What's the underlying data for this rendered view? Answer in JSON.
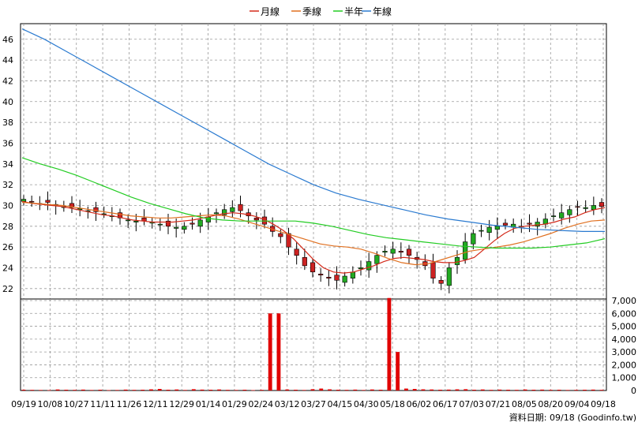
{
  "legend": [
    {
      "label": "月線",
      "color": "#d42a1a"
    },
    {
      "label": "季線",
      "color": "#e07020"
    },
    {
      "label": "半年",
      "color": "#22cc22"
    },
    {
      "label": "年線",
      "color": "#2a7ad0"
    }
  ],
  "footer": {
    "source": "資料日期: 09/18  (Goodinfo.tw)"
  },
  "chart_data": [
    {
      "type": "candlestick",
      "ylim": [
        21,
        47.5
      ],
      "yticks": [
        22,
        24,
        26,
        28,
        30,
        32,
        34,
        36,
        38,
        40,
        42,
        44,
        46
      ],
      "xticks": [
        "09/19",
        "10/08",
        "10/27",
        "11/11",
        "11/26",
        "12/11",
        "12/29",
        "01/14",
        "01/29",
        "02/24",
        "03/12",
        "03/27",
        "04/15",
        "04/30",
        "05/18",
        "06/02",
        "06/17",
        "07/03",
        "07/21",
        "08/05",
        "08/20",
        "09/04",
        "09/18"
      ],
      "grid": true,
      "up_color": "#22aa22",
      "down_color": "#cc2222",
      "close_series": [
        30.6,
        30.4,
        30.2,
        30.3,
        30.0,
        29.9,
        29.8,
        29.7,
        29.5,
        29.4,
        29.2,
        29.0,
        28.8,
        28.6,
        28.5,
        28.5,
        28.4,
        28.2,
        28.0,
        27.9,
        28.0,
        28.2,
        28.6,
        28.9,
        29.3,
        29.6,
        29.8,
        29.5,
        29.0,
        28.6,
        28.2,
        27.5,
        27.0,
        26.0,
        25.2,
        24.2,
        23.6,
        23.3,
        23.0,
        22.8,
        23.2,
        23.6,
        24.0,
        24.6,
        25.2,
        25.6,
        25.8,
        25.5,
        25.2,
        24.8,
        24.2,
        23.0,
        22.5,
        24.0,
        25.0,
        26.5,
        27.3,
        27.6,
        27.9,
        28.0,
        28.1,
        28.2,
        28.0,
        28.2,
        28.4,
        28.7,
        29.0,
        29.3,
        29.6,
        29.9,
        29.8,
        30.0,
        29.9
      ],
      "series": [
        {
          "name": "月線",
          "color": "#d42a1a",
          "values": [
            30.4,
            30.2,
            30.1,
            30.0,
            29.9,
            29.7,
            29.5,
            29.3,
            29.1,
            29.0,
            28.8,
            28.6,
            28.5,
            28.4,
            28.4,
            28.4,
            28.5,
            28.6,
            28.8,
            29.0,
            29.2,
            29.3,
            29.2,
            29.0,
            28.7,
            28.2,
            27.6,
            26.8,
            25.8,
            24.8,
            24.0,
            23.6,
            23.5,
            23.6,
            23.9,
            24.2,
            24.6,
            24.9,
            25.0,
            24.9,
            24.8,
            24.6,
            24.5,
            24.5,
            24.7,
            25.0,
            25.8,
            26.6,
            27.3,
            27.8,
            28.0,
            28.1,
            28.2,
            28.4,
            28.7,
            28.9,
            29.3,
            29.6,
            29.8
          ]
        },
        {
          "name": "季線",
          "color": "#e07020",
          "values": [
            30.3,
            30.2,
            30.1,
            30.0,
            29.8,
            29.6,
            29.4,
            29.2,
            29.0,
            28.9,
            28.8,
            28.8,
            28.9,
            29.0,
            29.1,
            29.0,
            28.7,
            28.3,
            27.9,
            27.5,
            27.1,
            26.7,
            26.3,
            26.1,
            26.0,
            25.8,
            25.4,
            24.9,
            24.5,
            24.3,
            24.4,
            24.8,
            25.2,
            25.6,
            25.8,
            26.0,
            26.2,
            26.5,
            26.9,
            27.3,
            27.8,
            28.2,
            28.5,
            28.6
          ]
        },
        {
          "name": "半年",
          "color": "#22cc22",
          "values": [
            34.6,
            34.0,
            33.5,
            32.9,
            32.2,
            31.5,
            30.8,
            30.2,
            29.7,
            29.2,
            28.8,
            28.6,
            28.5,
            28.5,
            28.5,
            28.5,
            28.3,
            28.0,
            27.6,
            27.2,
            26.9,
            26.7,
            26.5,
            26.3,
            26.1,
            26.0,
            25.9,
            25.9,
            25.9,
            26.0,
            26.2,
            26.4,
            26.8
          ]
        },
        {
          "name": "年線",
          "color": "#2a7ad0",
          "values": [
            47.0,
            46.0,
            44.8,
            43.6,
            42.4,
            41.2,
            40.0,
            38.8,
            37.6,
            36.4,
            35.2,
            34.0,
            33.0,
            32.0,
            31.2,
            30.6,
            30.1,
            29.6,
            29.1,
            28.7,
            28.4,
            28.1,
            27.9,
            27.7,
            27.6,
            27.5,
            27.5
          ]
        }
      ]
    },
    {
      "type": "bar",
      "ylim": [
        0,
        7000
      ],
      "yticks": [
        0,
        1000,
        2000,
        3000,
        4000,
        5000,
        6000,
        7000
      ],
      "ytick_labels": [
        "0",
        "1,000",
        "2,000",
        "3,000",
        "4,000",
        "5,000",
        "6,000",
        "7,000"
      ],
      "bar_color": "#e00000",
      "values": [
        60,
        50,
        40,
        30,
        80,
        60,
        50,
        70,
        40,
        60,
        30,
        40,
        70,
        50,
        60,
        90,
        120,
        60,
        80,
        40,
        100,
        70,
        60,
        80,
        50,
        40,
        60,
        30,
        50,
        6000,
        6000,
        80,
        60,
        40,
        100,
        150,
        90,
        60,
        50,
        70,
        40,
        80,
        60,
        7200,
        3000,
        150,
        120,
        90,
        80,
        60,
        70,
        90,
        100,
        60,
        80,
        50,
        70,
        60,
        50,
        80,
        60,
        70,
        50,
        60,
        40,
        50,
        60,
        70,
        50
      ]
    }
  ]
}
